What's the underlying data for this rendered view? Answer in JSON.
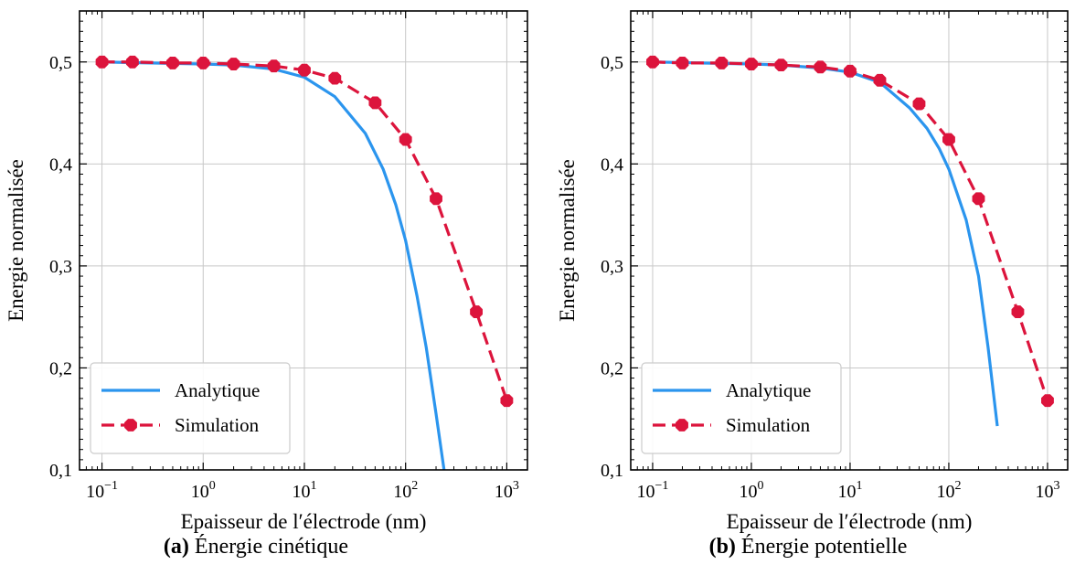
{
  "chart_data": [
    {
      "type": "line",
      "caption": {
        "tag": "(a)",
        "text": "Énergie cinétique"
      },
      "xlabel": "Epaisseur de l′électrode (nm)",
      "ylabel": "Energie normalisée",
      "xscale": "log",
      "xlim": [
        0.06,
        1600
      ],
      "ylim": [
        0.1,
        0.55
      ],
      "x_ticks": [
        {
          "value": 0.1,
          "base": "10",
          "exp": "−1"
        },
        {
          "value": 1,
          "base": "10",
          "exp": "0"
        },
        {
          "value": 10,
          "base": "10",
          "exp": "1"
        },
        {
          "value": 100,
          "base": "10",
          "exp": "2"
        },
        {
          "value": 1000,
          "base": "10",
          "exp": "3"
        }
      ],
      "y_ticks": [
        {
          "value": 0.1,
          "label": "0,1"
        },
        {
          "value": 0.2,
          "label": "0,2"
        },
        {
          "value": 0.3,
          "label": "0,3"
        },
        {
          "value": 0.4,
          "label": "0,4"
        },
        {
          "value": 0.5,
          "label": "0,5"
        }
      ],
      "grid": true,
      "legend": {
        "position": "lower-left"
      },
      "series": [
        {
          "name": "Analytique",
          "style": "solid",
          "color": "#2b95ee",
          "x": [
            0.1,
            0.3,
            1,
            2,
            5,
            10,
            20,
            40,
            60,
            80,
            100,
            130,
            160,
            200,
            240
          ],
          "y": [
            0.5,
            0.499,
            0.498,
            0.497,
            0.493,
            0.485,
            0.466,
            0.43,
            0.395,
            0.36,
            0.325,
            0.27,
            0.22,
            0.155,
            0.1
          ]
        },
        {
          "name": "Simulation",
          "style": "dashed",
          "marker": "octagon",
          "color": "#dc143c",
          "x": [
            0.1,
            0.2,
            0.5,
            1,
            2,
            5,
            10,
            20,
            50,
            100,
            200,
            500,
            1000
          ],
          "y": [
            0.5,
            0.5,
            0.499,
            0.499,
            0.498,
            0.496,
            0.492,
            0.484,
            0.46,
            0.424,
            0.366,
            0.255,
            0.168
          ]
        }
      ]
    },
    {
      "type": "line",
      "caption": {
        "tag": "(b)",
        "text": "Énergie potentielle"
      },
      "xlabel": "Epaisseur de l′électrode (nm)",
      "ylabel": "Energie normalisée",
      "xscale": "log",
      "xlim": [
        0.06,
        1600
      ],
      "ylim": [
        0.1,
        0.55
      ],
      "x_ticks": [
        {
          "value": 0.1,
          "base": "10",
          "exp": "−1"
        },
        {
          "value": 1,
          "base": "10",
          "exp": "0"
        },
        {
          "value": 10,
          "base": "10",
          "exp": "1"
        },
        {
          "value": 100,
          "base": "10",
          "exp": "2"
        },
        {
          "value": 1000,
          "base": "10",
          "exp": "3"
        }
      ],
      "y_ticks": [
        {
          "value": 0.1,
          "label": "0,1"
        },
        {
          "value": 0.2,
          "label": "0,2"
        },
        {
          "value": 0.3,
          "label": "0,3"
        },
        {
          "value": 0.4,
          "label": "0,4"
        },
        {
          "value": 0.5,
          "label": "0,5"
        }
      ],
      "grid": true,
      "legend": {
        "position": "lower-left"
      },
      "series": [
        {
          "name": "Analytique",
          "style": "solid",
          "color": "#2b95ee",
          "x": [
            0.1,
            0.3,
            1,
            2,
            5,
            10,
            20,
            40,
            60,
            80,
            100,
            150,
            200,
            250,
            310
          ],
          "y": [
            0.5,
            0.499,
            0.498,
            0.497,
            0.494,
            0.49,
            0.48,
            0.455,
            0.435,
            0.415,
            0.395,
            0.345,
            0.29,
            0.22,
            0.143
          ]
        },
        {
          "name": "Simulation",
          "style": "dashed",
          "marker": "octagon",
          "color": "#dc143c",
          "x": [
            0.1,
            0.2,
            0.5,
            1,
            2,
            5,
            10,
            20,
            50,
            100,
            200,
            500,
            1000
          ],
          "y": [
            0.5,
            0.499,
            0.499,
            0.498,
            0.497,
            0.495,
            0.491,
            0.482,
            0.459,
            0.424,
            0.366,
            0.255,
            0.168
          ]
        }
      ]
    }
  ]
}
